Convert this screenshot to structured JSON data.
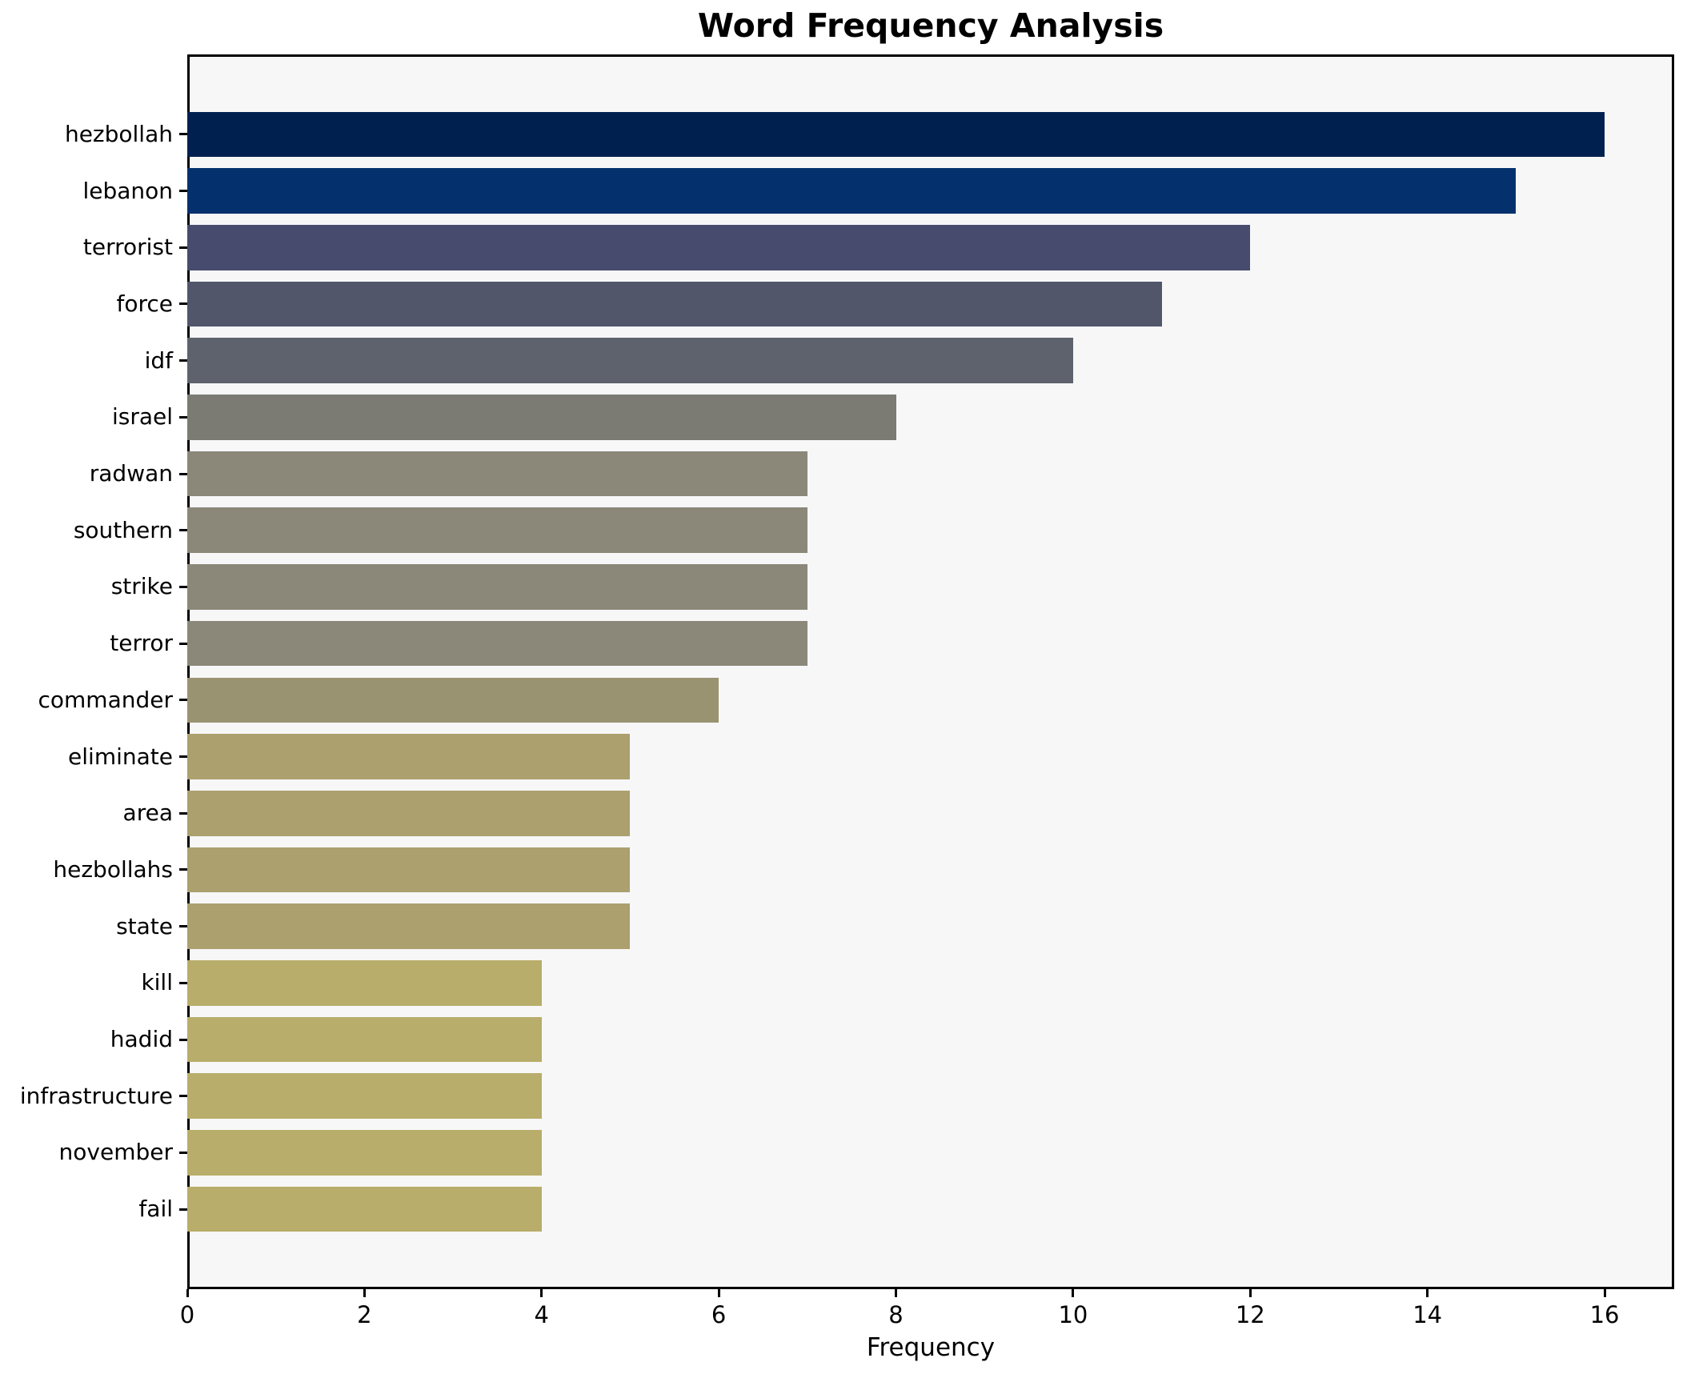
{
  "title": "Word Frequency Analysis",
  "xlabel": "Frequency",
  "chart_data": {
    "type": "bar",
    "orientation": "horizontal",
    "title": "Word Frequency Analysis",
    "xlabel": "Frequency",
    "ylabel": "",
    "categories": [
      "hezbollah",
      "lebanon",
      "terrorist",
      "force",
      "idf",
      "israel",
      "radwan",
      "southern",
      "strike",
      "terror",
      "commander",
      "eliminate",
      "area",
      "hezbollahs",
      "state",
      "kill",
      "hadid",
      "infrastructure",
      "november",
      "fail"
    ],
    "values": [
      16,
      15,
      12,
      11,
      10,
      8,
      7,
      7,
      7,
      7,
      6,
      5,
      5,
      5,
      5,
      4,
      4,
      4,
      4,
      4
    ],
    "bar_colors": [
      "#002150",
      "#04316d",
      "#474c6e",
      "#51566b",
      "#5e626d",
      "#7b7b74",
      "#8b8879",
      "#8b8879",
      "#8b8879",
      "#8b8879",
      "#9a9372",
      "#aba06e",
      "#aba06e",
      "#aba06e",
      "#aba06e",
      "#b8ad6a",
      "#b8ad6a",
      "#b8ad6a",
      "#b8ad6a",
      "#b8ad6a"
    ],
    "xticks": [
      0,
      2,
      4,
      6,
      8,
      10,
      12,
      14,
      16
    ],
    "xlim": [
      0,
      16.78
    ],
    "grid": false,
    "legend": null,
    "plot_background": "#f7f7f8",
    "figure_background": "#ffffff",
    "text_color": "#000000"
  }
}
